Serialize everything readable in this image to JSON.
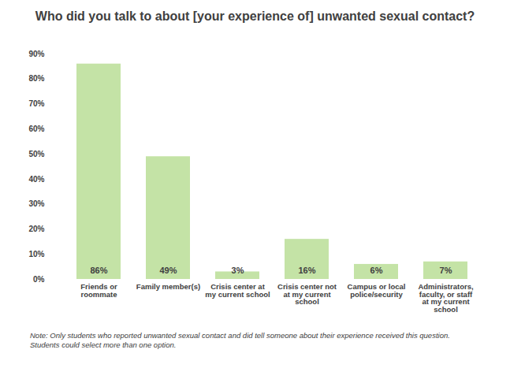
{
  "chart_data": {
    "type": "bar",
    "title": "Who did you talk to about [your experience of] unwanted sexual contact?",
    "categories": [
      "Friends or roommate",
      "Family member(s)",
      "Crisis center at my current school",
      "Crisis center not at my current school",
      "Campus or local police/security",
      "Administrators, faculty, or staff at my current school"
    ],
    "values": [
      86,
      49,
      3,
      16,
      6,
      7
    ],
    "value_labels": [
      "86%",
      "49%",
      "3%",
      "16%",
      "6%",
      "7%"
    ],
    "color": "#c4e3a6",
    "ylim": [
      0,
      90
    ],
    "yticks": [
      {
        "value": 0,
        "label": "0%"
      },
      {
        "value": 10,
        "label": "10%"
      },
      {
        "value": 20,
        "label": "20%"
      },
      {
        "value": 30,
        "label": "30%"
      },
      {
        "value": 40,
        "label": "40%"
      },
      {
        "value": 50,
        "label": "50%"
      },
      {
        "value": 60,
        "label": "60%"
      },
      {
        "value": 70,
        "label": "70%"
      },
      {
        "value": 80,
        "label": "80%"
      },
      {
        "value": 90,
        "label": "90%"
      }
    ],
    "grid": false,
    "data_labels": true,
    "note": [
      "Note: Only students who reported unwanted sexual contact and did tell someone about their experience received this question.",
      "Students could select more than one option."
    ]
  }
}
